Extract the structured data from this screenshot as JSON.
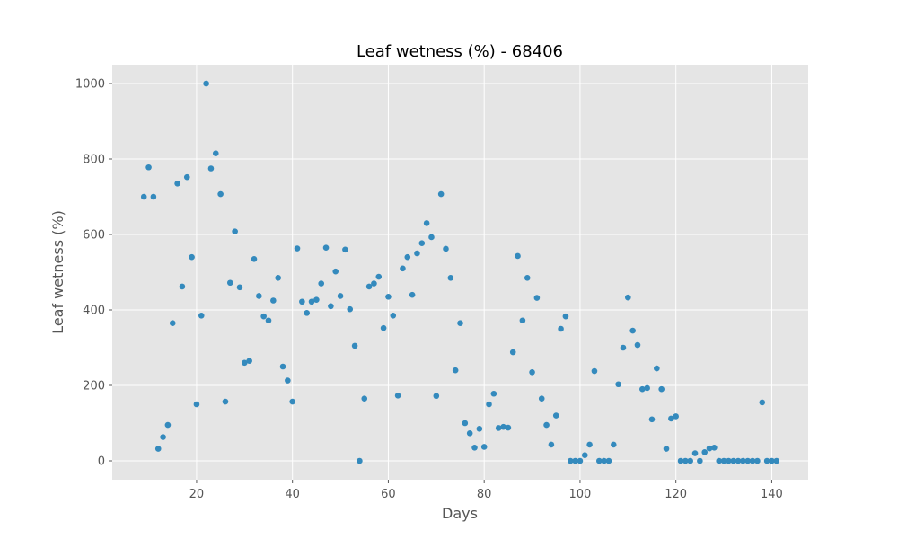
{
  "chart_data": {
    "type": "scatter",
    "title": "Leaf wetness (%) - 68406",
    "xlabel": "Days",
    "ylabel": "Leaf wetness (%)",
    "xlim": [
      2.4,
      147.6
    ],
    "ylim": [
      -50,
      1050
    ],
    "xticks": [
      20,
      40,
      60,
      80,
      100,
      120,
      140
    ],
    "yticks": [
      0,
      200,
      400,
      600,
      800,
      1000
    ],
    "grid": true,
    "style": "ggplot",
    "colors": {
      "background": "#e5e5e5",
      "point": "#348abd",
      "grid": "#ffffff"
    },
    "points": [
      [
        9,
        700
      ],
      [
        10,
        778
      ],
      [
        11,
        700
      ],
      [
        12,
        32
      ],
      [
        13,
        63
      ],
      [
        14,
        95
      ],
      [
        15,
        365
      ],
      [
        16,
        735
      ],
      [
        17,
        462
      ],
      [
        18,
        752
      ],
      [
        19,
        540
      ],
      [
        20,
        150
      ],
      [
        21,
        385
      ],
      [
        22,
        1000
      ],
      [
        23,
        775
      ],
      [
        24,
        815
      ],
      [
        25,
        707
      ],
      [
        26,
        157
      ],
      [
        27,
        472
      ],
      [
        28,
        608
      ],
      [
        29,
        460
      ],
      [
        30,
        260
      ],
      [
        31,
        265
      ],
      [
        32,
        535
      ],
      [
        33,
        437
      ],
      [
        34,
        383
      ],
      [
        35,
        372
      ],
      [
        36,
        425
      ],
      [
        37,
        485
      ],
      [
        38,
        250
      ],
      [
        39,
        213
      ],
      [
        40,
        157
      ],
      [
        41,
        563
      ],
      [
        42,
        422
      ],
      [
        43,
        392
      ],
      [
        44,
        422
      ],
      [
        45,
        427
      ],
      [
        46,
        470
      ],
      [
        47,
        565
      ],
      [
        48,
        410
      ],
      [
        49,
        502
      ],
      [
        50,
        437
      ],
      [
        51,
        560
      ],
      [
        52,
        402
      ],
      [
        53,
        305
      ],
      [
        54,
        0
      ],
      [
        55,
        165
      ],
      [
        56,
        462
      ],
      [
        57,
        470
      ],
      [
        58,
        488
      ],
      [
        59,
        352
      ],
      [
        60,
        435
      ],
      [
        61,
        385
      ],
      [
        62,
        173
      ],
      [
        63,
        510
      ],
      [
        64,
        540
      ],
      [
        65,
        440
      ],
      [
        66,
        550
      ],
      [
        67,
        577
      ],
      [
        68,
        630
      ],
      [
        69,
        593
      ],
      [
        70,
        172
      ],
      [
        71,
        707
      ],
      [
        72,
        562
      ],
      [
        73,
        485
      ],
      [
        74,
        240
      ],
      [
        75,
        365
      ],
      [
        76,
        100
      ],
      [
        77,
        73
      ],
      [
        78,
        35
      ],
      [
        79,
        85
      ],
      [
        80,
        37
      ],
      [
        81,
        150
      ],
      [
        82,
        178
      ],
      [
        83,
        87
      ],
      [
        84,
        90
      ],
      [
        85,
        88
      ],
      [
        86,
        288
      ],
      [
        87,
        543
      ],
      [
        88,
        372
      ],
      [
        89,
        485
      ],
      [
        90,
        235
      ],
      [
        91,
        432
      ],
      [
        92,
        165
      ],
      [
        93,
        95
      ],
      [
        94,
        43
      ],
      [
        95,
        120
      ],
      [
        96,
        350
      ],
      [
        97,
        383
      ],
      [
        98,
        0
      ],
      [
        99,
        0
      ],
      [
        100,
        0
      ],
      [
        101,
        15
      ],
      [
        102,
        43
      ],
      [
        103,
        238
      ],
      [
        104,
        0
      ],
      [
        105,
        0
      ],
      [
        106,
        0
      ],
      [
        107,
        43
      ],
      [
        108,
        203
      ],
      [
        109,
        300
      ],
      [
        110,
        433
      ],
      [
        111,
        345
      ],
      [
        112,
        307
      ],
      [
        113,
        190
      ],
      [
        114,
        193
      ],
      [
        115,
        110
      ],
      [
        116,
        245
      ],
      [
        117,
        190
      ],
      [
        118,
        32
      ],
      [
        119,
        112
      ],
      [
        120,
        118
      ],
      [
        121,
        0
      ],
      [
        122,
        0
      ],
      [
        123,
        0
      ],
      [
        124,
        20
      ],
      [
        125,
        0
      ],
      [
        126,
        23
      ],
      [
        127,
        33
      ],
      [
        128,
        35
      ],
      [
        129,
        0
      ],
      [
        130,
        0
      ],
      [
        131,
        0
      ],
      [
        132,
        0
      ],
      [
        133,
        0
      ],
      [
        134,
        0
      ],
      [
        135,
        0
      ],
      [
        136,
        0
      ],
      [
        137,
        0
      ],
      [
        138,
        155
      ],
      [
        139,
        0
      ],
      [
        140,
        0
      ],
      [
        141,
        0
      ]
    ]
  }
}
